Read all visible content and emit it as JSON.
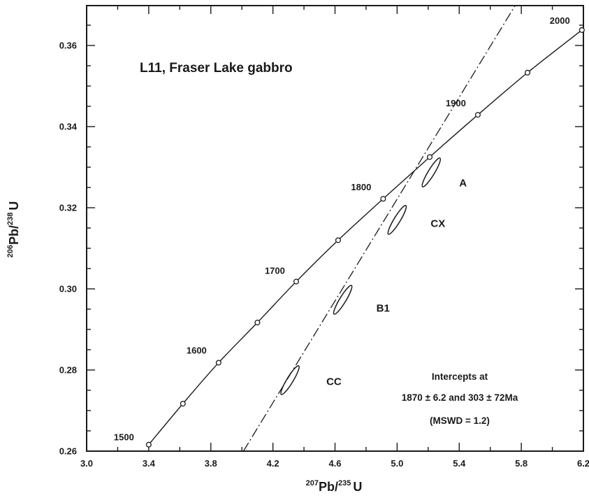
{
  "chart_data": {
    "type": "scatter",
    "title": "L11, Fraser Lake gabbro",
    "xlabel": {
      "pre_sup": "207",
      "main": "Pb/",
      "mid_sup": "235",
      "post": "U"
    },
    "ylabel": {
      "pre_sup": "206",
      "main": "Pb/",
      "mid_sup": "238",
      "post": "U"
    },
    "xlim": [
      3.0,
      6.2
    ],
    "ylim": [
      0.26,
      0.37
    ],
    "xticks": [
      "3.0",
      "3.4",
      "3.8",
      "4.2",
      "4.6",
      "5.0",
      "5.4",
      "5.8",
      "6.2"
    ],
    "yticks": [
      "0.26",
      "0.28",
      "0.30",
      "0.32",
      "0.34",
      "0.36"
    ],
    "concordia": {
      "points": [
        {
          "age": 1500,
          "x": 3.4,
          "y": 0.2616,
          "label": "1500"
        },
        {
          "age": 1550,
          "x": 3.62,
          "y": 0.2717,
          "label": ""
        },
        {
          "age": 1600,
          "x": 3.85,
          "y": 0.2818,
          "label": "1600"
        },
        {
          "age": 1650,
          "x": 4.1,
          "y": 0.2917,
          "label": ""
        },
        {
          "age": 1700,
          "x": 4.35,
          "y": 0.3018,
          "label": "1700"
        },
        {
          "age": 1750,
          "x": 4.62,
          "y": 0.312,
          "label": ""
        },
        {
          "age": 1800,
          "x": 4.91,
          "y": 0.3222,
          "label": "1800"
        },
        {
          "age": 1850,
          "x": 5.21,
          "y": 0.3325,
          "label": ""
        },
        {
          "age": 1900,
          "x": 5.52,
          "y": 0.3429,
          "label": "1900"
        },
        {
          "age": 1950,
          "x": 5.84,
          "y": 0.3533,
          "label": ""
        },
        {
          "age": 2000,
          "x": 6.19,
          "y": 0.3638,
          "label": "2000"
        }
      ]
    },
    "discordia": {
      "style": "dash-dot",
      "from": {
        "x": 4.01,
        "y": 0.26
      },
      "to": {
        "x": 5.76,
        "y": 0.37
      }
    },
    "analyses": [
      {
        "label": "A",
        "x": 5.22,
        "y": 0.3287
      },
      {
        "label": "CX",
        "x": 5.0,
        "y": 0.317
      },
      {
        "label": "B1",
        "x": 4.65,
        "y": 0.2973
      },
      {
        "label": "CC",
        "x": 4.31,
        "y": 0.2775
      }
    ],
    "annotations": [
      "Intercepts at",
      "1870 ± 6.2 and 303 ± 72Ma",
      "(MSWD = 1.2)"
    ]
  }
}
